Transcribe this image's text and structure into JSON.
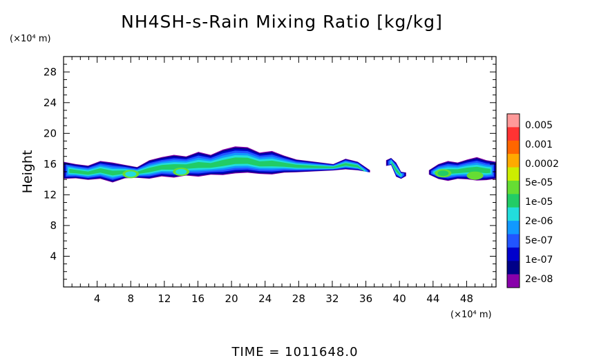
{
  "chart_data": {
    "type": "heatmap",
    "title": "NH4SH-s-Rain Mixing Ratio [kg/kg]",
    "xlabel": "",
    "ylabel": "Height",
    "x_unit": "(×10⁴ m)",
    "y_unit": "(×10⁴ m)",
    "xlim": [
      0,
      51.5
    ],
    "ylim": [
      0,
      30
    ],
    "x_ticks": [
      4,
      8,
      12,
      16,
      20,
      24,
      28,
      32,
      36,
      40,
      44,
      48
    ],
    "y_ticks": [
      4,
      8,
      12,
      16,
      20,
      24,
      28
    ],
    "colorbar": {
      "labels": [
        "0.005",
        "0.001",
        "0.0002",
        "5e-05",
        "1e-05",
        "2e-06",
        "5e-07",
        "1e-07",
        "2e-08"
      ],
      "colors": [
        "#ff9999",
        "#ff3333",
        "#ff6600",
        "#ffaa00",
        "#ccee00",
        "#66dd33",
        "#22cc66",
        "#22dddd",
        "#1199ff",
        "#2255ff",
        "#0000cc",
        "#000088",
        "#8800aa"
      ]
    },
    "bands": [
      {
        "x0": 0,
        "x1": 36.5,
        "top": [
          16.3,
          16.0,
          15.8,
          16.4,
          16.2,
          15.9,
          15.6,
          16.5,
          16.9,
          17.2,
          17.0,
          17.6,
          17.2,
          17.9,
          18.3,
          18.2,
          17.5,
          17.7,
          17.1,
          16.6,
          16.4,
          16.2,
          16.0,
          16.7,
          16.3,
          15.2
        ],
        "bottom": [
          13.9,
          14.0,
          13.8,
          13.9,
          13.4,
          14.0,
          14.1,
          13.9,
          14.2,
          14.0,
          14.3,
          14.1,
          14.4,
          14.3,
          14.5,
          14.6,
          14.5,
          14.4,
          14.7,
          14.8,
          14.9,
          15.0,
          15.1,
          15.2,
          15.1,
          14.9
        ]
      },
      {
        "x0": 38.4,
        "x1": 40.8,
        "top": [
          16.5,
          16.8,
          16.2,
          15.0,
          14.9
        ],
        "bottom": [
          15.7,
          15.8,
          14.2,
          14.0,
          14.4
        ]
      },
      {
        "x0": 43.5,
        "x1": 51.5,
        "top": [
          15.2,
          16.0,
          16.4,
          16.2,
          16.6,
          16.9,
          16.5,
          16.3
        ],
        "bottom": [
          14.6,
          13.9,
          13.6,
          13.9,
          13.8,
          13.6,
          13.7,
          13.9
        ]
      }
    ],
    "hotspots": [
      {
        "x": 49.0,
        "y": 14.5,
        "level": "0.0002"
      },
      {
        "x": 45.2,
        "y": 14.8,
        "level": "5e-05"
      },
      {
        "x": 8.0,
        "y": 14.7,
        "level": "1e-05"
      },
      {
        "x": 14.0,
        "y": 15.0,
        "level": "1e-05"
      }
    ]
  },
  "footer": {
    "time_label": "TIME = 1011648.0"
  }
}
